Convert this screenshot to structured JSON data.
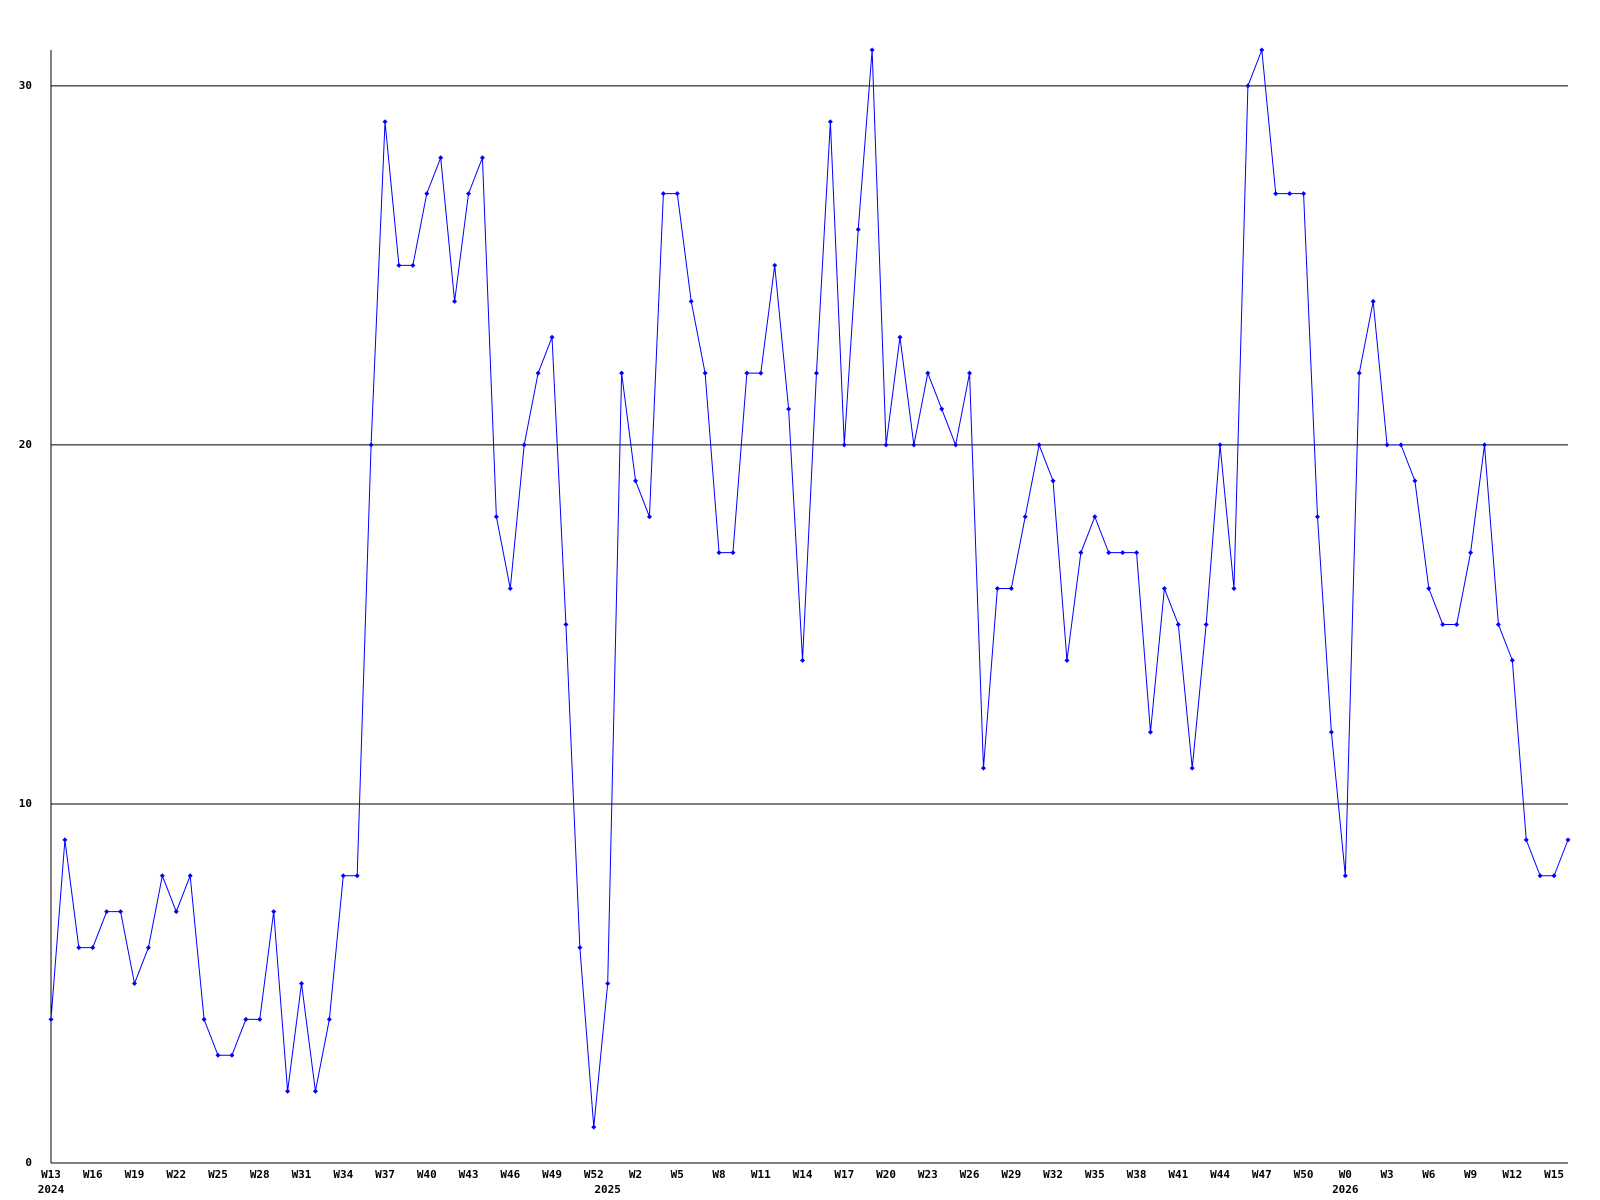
{
  "chart_data": {
    "type": "line",
    "categories": [
      "W13",
      null,
      null,
      "W16",
      null,
      null,
      "W19",
      null,
      null,
      "W22",
      null,
      null,
      "W25",
      null,
      null,
      "W28",
      null,
      null,
      "W31",
      null,
      null,
      "W34",
      null,
      null,
      "W37",
      null,
      null,
      "W40",
      null,
      null,
      "W43",
      null,
      null,
      "W46",
      null,
      null,
      "W49",
      null,
      null,
      "W52",
      null,
      null,
      "W2",
      null,
      null,
      "W5",
      null,
      null,
      "W8",
      null,
      null,
      "W11",
      null,
      null,
      "W14",
      null,
      null,
      "W17",
      null,
      null,
      "W20",
      null,
      null,
      "W23",
      null,
      null,
      "W26",
      null,
      null,
      "W29",
      null,
      null,
      "W32",
      null,
      null,
      "W35",
      null,
      null,
      "W38",
      null,
      null,
      "W41",
      null,
      null,
      "W44",
      null,
      null,
      "W47",
      null,
      null,
      "W50",
      null,
      null,
      "W0",
      null,
      null,
      "W3",
      null,
      null,
      "W6",
      null,
      null,
      "W9",
      null,
      null,
      "W12",
      null,
      null,
      "W15",
      null
    ],
    "year_labels": [
      {
        "at": 0,
        "label": "2024"
      },
      {
        "at": 40,
        "label": "2025"
      },
      {
        "at": 93,
        "label": "2026"
      }
    ],
    "values": [
      4,
      9,
      6,
      6,
      7,
      7,
      5,
      6,
      8,
      7,
      8,
      4,
      3,
      3,
      4,
      4,
      7,
      2,
      5,
      2,
      4,
      8,
      8,
      20,
      29,
      25,
      25,
      27,
      28,
      24,
      27,
      28,
      18,
      16,
      20,
      22,
      23,
      15,
      6,
      1,
      5,
      22,
      19,
      18,
      27,
      27,
      24,
      22,
      17,
      17,
      22,
      22,
      25,
      21,
      14,
      22,
      29,
      20,
      26,
      31,
      20,
      23,
      20,
      22,
      21,
      20,
      22,
      11,
      16,
      16,
      18,
      20,
      19,
      14,
      17,
      18,
      17,
      17,
      17,
      12,
      16,
      15,
      11,
      15,
      20,
      16,
      30,
      31,
      27,
      27,
      27,
      18,
      12,
      8,
      22,
      24,
      20,
      20,
      19,
      16,
      15,
      15,
      17,
      20,
      15,
      14,
      9,
      8,
      8,
      9
    ],
    "color": "#0000ff",
    "ylim": [
      0,
      31
    ],
    "yticks": [
      0,
      10,
      20,
      30
    ],
    "grid": true
  }
}
